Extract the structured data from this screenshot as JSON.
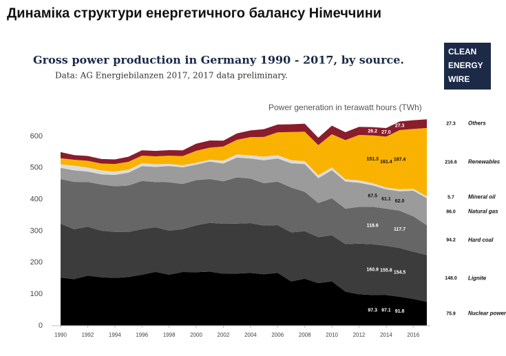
{
  "header": {
    "title": "Динаміка структури енергетичного балансу Німеччини"
  },
  "logo": [
    "CLEAN",
    "ENERGY",
    "WIRE"
  ],
  "chart_data": {
    "type": "area",
    "stacked": true,
    "title": "Gross power production in Germany 1990 - 2017, by source.",
    "subtitle": "Data: AG Energiebilanzen 2017, 2017 data preliminary.",
    "y_label": "Power generation in terawatt hours (TWh)",
    "x": [
      1990,
      1991,
      1992,
      1993,
      1994,
      1995,
      1996,
      1997,
      1998,
      1999,
      2000,
      2001,
      2002,
      2003,
      2004,
      2005,
      2006,
      2007,
      2008,
      2009,
      2010,
      2011,
      2012,
      2013,
      2014,
      2015,
      2016,
      2017
    ],
    "xlim": [
      1990,
      2017
    ],
    "xticks": [
      1990,
      1992,
      1994,
      1996,
      1998,
      2000,
      2002,
      2004,
      2006,
      2008,
      2010,
      2012,
      2014,
      2016
    ],
    "ylim": [
      0,
      650
    ],
    "yticks": [
      0,
      100,
      200,
      300,
      400,
      500,
      600
    ],
    "grid": false,
    "series": [
      {
        "name": "Nuclear power",
        "color": "#000000",
        "values": [
          152.5,
          147.4,
          158.8,
          153.5,
          151.2,
          154.1,
          161.6,
          170.3,
          161.6,
          170.0,
          169.6,
          171.3,
          164.8,
          165.1,
          167.1,
          163.0,
          167.3,
          140.5,
          148.8,
          134.9,
          140.6,
          108.0,
          99.5,
          97.3,
          97.1,
          91.8,
          84.9,
          75.9
        ],
        "value_labels": [
          null,
          null,
          null,
          null,
          null,
          null,
          null,
          null,
          null,
          null,
          null,
          null,
          null,
          null,
          null,
          null,
          null,
          null,
          null,
          null,
          null,
          null,
          null,
          "97.3",
          "97.1",
          "91.8",
          null,
          "75.9"
        ]
      },
      {
        "name": "Lignite",
        "color": "#3c3c3c",
        "values": [
          170.9,
          158.3,
          154.7,
          147.5,
          146.1,
          142.6,
          144.3,
          141.7,
          139.4,
          136.0,
          148.3,
          154.8,
          158.0,
          158.2,
          158.0,
          154.1,
          151.1,
          155.1,
          150.6,
          145.6,
          145.9,
          150.1,
          160.7,
          160.9,
          155.8,
          154.5,
          149.5,
          148.0
        ],
        "value_labels": [
          null,
          null,
          null,
          null,
          null,
          null,
          null,
          null,
          null,
          null,
          null,
          null,
          null,
          null,
          null,
          null,
          null,
          null,
          null,
          null,
          null,
          null,
          null,
          "160.9",
          "155.8",
          "154.5",
          null,
          "148.0"
        ]
      },
      {
        "name": "Hard coal",
        "color": "#666666",
        "values": [
          140.8,
          149.8,
          141.9,
          146.1,
          144.3,
          147.1,
          152.7,
          143.1,
          153.4,
          143.1,
          143.1,
          138.4,
          134.6,
          146.5,
          140.8,
          134.1,
          137.9,
          142.0,
          124.6,
          107.9,
          117.0,
          112.4,
          116.4,
          118.6,
          118.0,
          117.7,
          112.2,
          94.2
        ],
        "value_labels": [
          null,
          null,
          null,
          null,
          null,
          null,
          null,
          null,
          null,
          null,
          null,
          null,
          null,
          null,
          null,
          null,
          null,
          null,
          null,
          null,
          null,
          null,
          null,
          "118.6",
          null,
          "117.7",
          null,
          "94.2"
        ]
      },
      {
        "name": "Natural gas",
        "color": "#9b9b9b",
        "values": [
          35.9,
          36.6,
          33.0,
          32.6,
          36.1,
          41.1,
          46.6,
          48.0,
          51.4,
          52.7,
          49.2,
          55.5,
          56.3,
          62.9,
          63.5,
          72.7,
          73.4,
          77.0,
          88.0,
          78.9,
          89.3,
          86.1,
          76.4,
          67.5,
          61.1,
          62.0,
          81.3,
          86.0
        ],
        "value_labels": [
          null,
          null,
          null,
          null,
          null,
          null,
          null,
          null,
          null,
          null,
          null,
          null,
          null,
          null,
          null,
          null,
          null,
          null,
          null,
          null,
          null,
          null,
          null,
          "67.5",
          "61.1",
          "62.0",
          null,
          "86.0"
        ]
      },
      {
        "name": "Mineral oil",
        "color": "#dcdcdc",
        "values": [
          10.8,
          14.8,
          12.8,
          12.1,
          11.0,
          9.1,
          9.5,
          8.4,
          6.9,
          6.4,
          5.9,
          5.8,
          9.2,
          9.9,
          10.3,
          11.6,
          10.5,
          9.6,
          9.2,
          9.6,
          8.7,
          7.2,
          7.6,
          7.2,
          5.7,
          6.2,
          5.8,
          5.7
        ],
        "value_labels": [
          null,
          null,
          null,
          null,
          null,
          null,
          null,
          null,
          null,
          null,
          null,
          null,
          null,
          null,
          null,
          null,
          null,
          null,
          null,
          null,
          null,
          null,
          null,
          null,
          null,
          null,
          null,
          "5.7"
        ]
      },
      {
        "name": "Renewables",
        "color": "#f9b200",
        "values": [
          19.7,
          18.9,
          21.1,
          22.0,
          23.6,
          25.1,
          24.1,
          25.2,
          25.7,
          29.1,
          37.9,
          38.3,
          44.8,
          46.3,
          57.7,
          62.5,
          72.5,
          89.4,
          93.3,
          95.1,
          105.2,
          124.0,
          143.5,
          151.3,
          161.4,
          187.4,
          189.7,
          216.6
        ],
        "value_labels": [
          null,
          null,
          null,
          null,
          null,
          null,
          null,
          null,
          null,
          null,
          null,
          null,
          null,
          null,
          null,
          null,
          null,
          null,
          null,
          null,
          null,
          null,
          null,
          "151.3",
          "161.4",
          "187.4",
          null,
          "216.6"
        ]
      },
      {
        "name": "Others",
        "color": "#8b1c2c",
        "values": [
          19.3,
          14.7,
          15.5,
          14.2,
          14.5,
          16.2,
          16.9,
          17.1,
          17.8,
          18.2,
          22.6,
          22.6,
          18.6,
          20.2,
          21.2,
          24.6,
          24.6,
          24.3,
          25.5,
          23.6,
          26.9,
          25.2,
          25.6,
          26.2,
          27.0,
          27.3,
          27.3,
          27.3
        ],
        "value_labels": [
          null,
          null,
          null,
          null,
          null,
          null,
          null,
          null,
          null,
          null,
          null,
          null,
          null,
          null,
          null,
          null,
          null,
          null,
          null,
          null,
          null,
          null,
          null,
          "26.2",
          "27.0",
          "27.3",
          null,
          "27.3"
        ]
      }
    ]
  }
}
